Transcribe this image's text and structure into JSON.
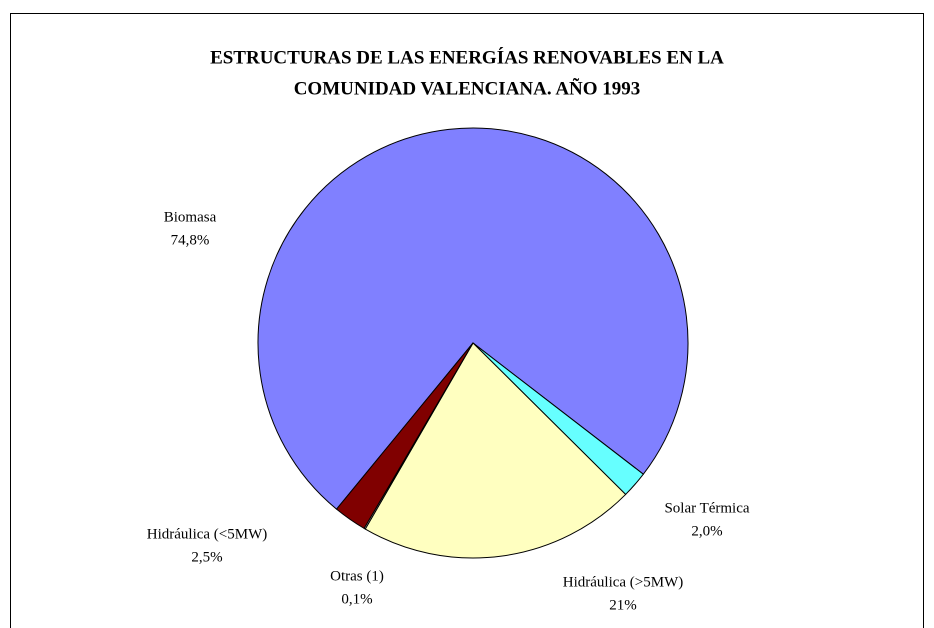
{
  "chart_data": {
    "type": "pie",
    "title": [
      "ESTRUCTURAS DE LAS ENERGÍAS RENOVABLES EN LA",
      "COMUNIDAD VALENCIANA. AÑO 1993"
    ],
    "categories": [
      "Biomasa",
      "Solar Térmica",
      "Hidráulica (>5MW)",
      "Otras (1)",
      "Hidráulica (<5MW)"
    ],
    "values": [
      74.8,
      2.0,
      21,
      0.1,
      2.5
    ],
    "value_labels": [
      "74,8%",
      "2,0%",
      "21%",
      "0,1%",
      "2,5%"
    ],
    "colors": [
      "#8080ff",
      "#66ffff",
      "#ffffc0",
      "#ffffff",
      "#800000"
    ]
  }
}
